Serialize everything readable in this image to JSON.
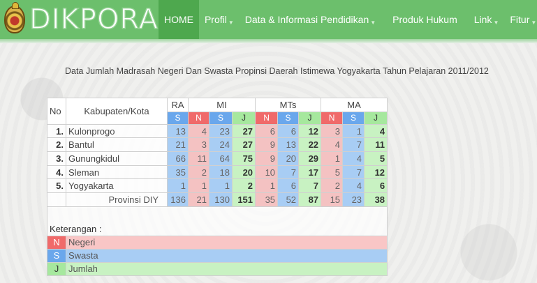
{
  "header": {
    "logo_text": "DIKPORA",
    "nav": [
      {
        "label": "HOME",
        "active": true,
        "dropdown": false
      },
      {
        "label": "Profil",
        "active": false,
        "dropdown": true
      },
      {
        "label": "Data & Informasi Pendidikan",
        "active": false,
        "dropdown": true
      },
      {
        "label": "Produk Hukum",
        "active": false,
        "dropdown": false
      },
      {
        "label": "Link",
        "active": false,
        "dropdown": true
      },
      {
        "label": "Fitur",
        "active": false,
        "dropdown": true
      }
    ]
  },
  "page": {
    "title": "Data Jumlah Madrasah Negeri Dan Swasta Propinsi Daerah Istimewa Yogyakarta Tahun Pelajaran 2011/2012"
  },
  "table": {
    "headers": {
      "no": "No",
      "kabupaten": "Kabupaten/Kota",
      "groups": [
        "RA",
        "MI",
        "MTs",
        "MA"
      ],
      "sub_n": "N",
      "sub_s": "S",
      "sub_j": "J"
    },
    "rows": [
      {
        "no": "1.",
        "name": "Kulonprogo",
        "ra_s": "13",
        "mi_n": "4",
        "mi_s": "23",
        "mi_j": "27",
        "mts_n": "6",
        "mts_s": "6",
        "mts_j": "12",
        "ma_n": "3",
        "ma_s": "1",
        "ma_j": "4"
      },
      {
        "no": "2.",
        "name": "Bantul",
        "ra_s": "21",
        "mi_n": "3",
        "mi_s": "24",
        "mi_j": "27",
        "mts_n": "9",
        "mts_s": "13",
        "mts_j": "22",
        "ma_n": "4",
        "ma_s": "7",
        "ma_j": "11"
      },
      {
        "no": "3.",
        "name": "Gunungkidul",
        "ra_s": "66",
        "mi_n": "11",
        "mi_s": "64",
        "mi_j": "75",
        "mts_n": "9",
        "mts_s": "20",
        "mts_j": "29",
        "ma_n": "1",
        "ma_s": "4",
        "ma_j": "5"
      },
      {
        "no": "4.",
        "name": "Sleman",
        "ra_s": "35",
        "mi_n": "2",
        "mi_s": "18",
        "mi_j": "20",
        "mts_n": "10",
        "mts_s": "7",
        "mts_j": "17",
        "ma_n": "5",
        "ma_s": "7",
        "ma_j": "12"
      },
      {
        "no": "5.",
        "name": "Yogyakarta",
        "ra_s": "1",
        "mi_n": "1",
        "mi_s": "1",
        "mi_j": "2",
        "mts_n": "1",
        "mts_s": "6",
        "mts_j": "7",
        "ma_n": "2",
        "ma_s": "4",
        "ma_j": "6"
      }
    ],
    "total": {
      "name": "Provinsi DIY",
      "ra_s": "136",
      "mi_n": "21",
      "mi_s": "130",
      "mi_j": "151",
      "mts_n": "35",
      "mts_s": "52",
      "mts_j": "87",
      "ma_n": "15",
      "ma_s": "23",
      "ma_j": "38"
    }
  },
  "legend": {
    "title": "Keterangan :",
    "items": [
      {
        "key": "N",
        "label": "Negeri"
      },
      {
        "key": "S",
        "label": "Swasta"
      },
      {
        "key": "J",
        "label": "Jumlah"
      }
    ]
  },
  "colors": {
    "header_green": "#6cbf6c",
    "active_nav": "#4ea84e",
    "negeri": "#f06a6a",
    "swasta": "#6aa7ec",
    "jumlah": "#a6e89e"
  }
}
